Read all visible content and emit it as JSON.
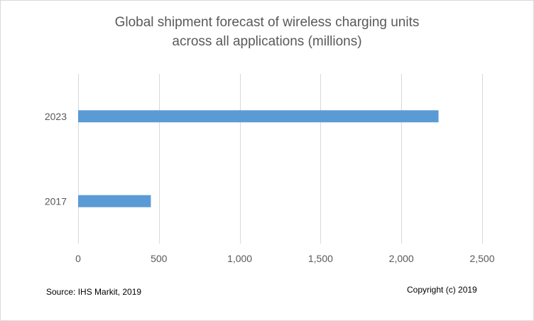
{
  "chart_data": {
    "type": "bar",
    "orientation": "horizontal",
    "title_lines": [
      "Global shipment forecast of wireless charging units",
      "across all applications (millions)"
    ],
    "categories": [
      "2023",
      "2017"
    ],
    "values": [
      2230,
      450
    ],
    "xlim": [
      0,
      2500
    ],
    "x_ticks": [
      0,
      500,
      1000,
      1500,
      2000,
      2500
    ],
    "x_tick_labels": [
      "0",
      "500",
      "1,000",
      "1,500",
      "2,000",
      "2,500"
    ],
    "grid": "vertical",
    "legend": "none",
    "bar_color": "#5b9bd5",
    "grid_color": "#d9d9d9"
  },
  "footer": {
    "source": "Source: IHS Markit, 2019",
    "copyright": "Copyright (c) 2019"
  }
}
